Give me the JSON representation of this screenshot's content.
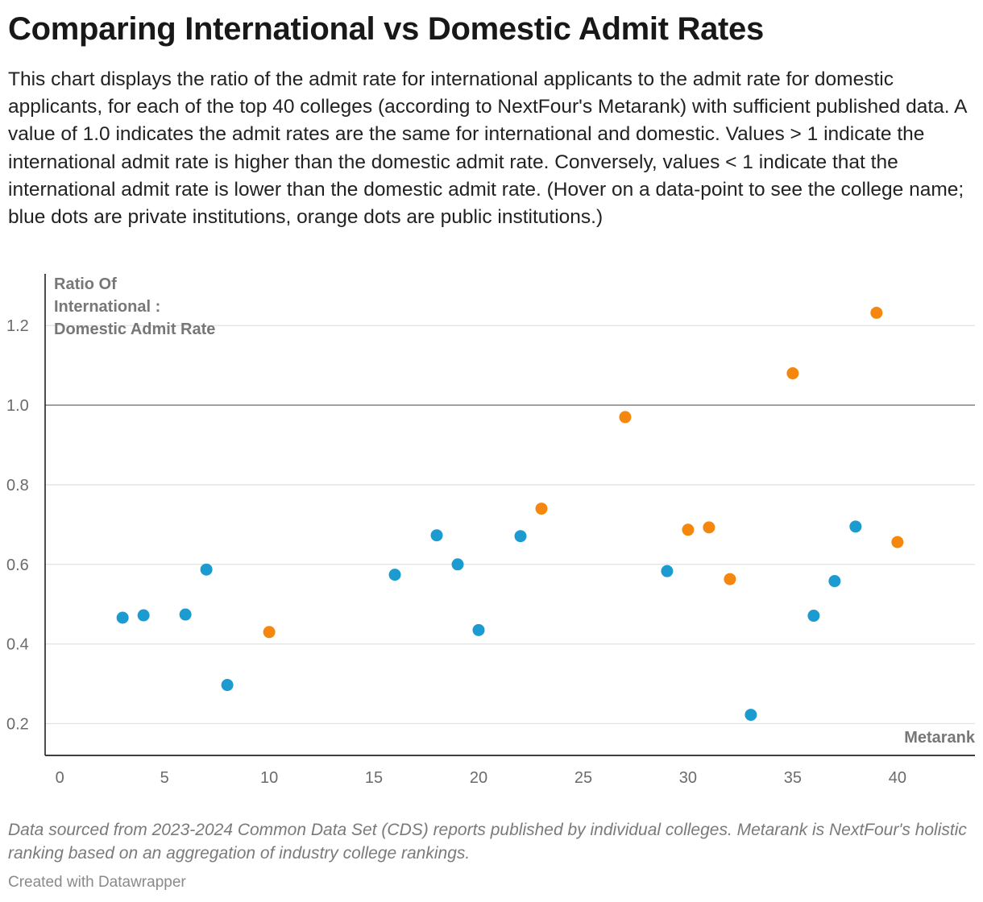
{
  "title": "Comparing International vs Domestic Admit Rates",
  "description": "This chart displays the ratio of the admit rate for international applicants to the admit rate for domestic applicants, for each of the top 40 colleges (according to NextFour's Metarank) with sufficient published data. A value of 1.0 indicates the admit rates are the same for international and domestic. Values > 1 indicate the international admit rate is higher than the domestic admit rate. Conversely, values < 1 indicate that the international admit rate is lower than the domestic admit rate. (Hover on a data-point to see the college name; blue dots are private institutions, orange dots are public institutions.)",
  "notes": "Data sourced from 2023-2024 Common Data Set (CDS) reports published by individual colleges. Metarank is NextFour's holistic ranking based on an aggregation of industry college rankings.",
  "credit": "Created with Datawrapper",
  "colors": {
    "private": "#1c9bd0",
    "public": "#f5870f",
    "gridline": "#e2e2e2",
    "reference": "#8c8c8c",
    "axis": "#222222"
  },
  "chart_data": {
    "type": "scatter",
    "title": "Comparing International vs Domestic Admit Rates",
    "xlabel": "Metarank",
    "ylabel_lines": [
      "Ratio Of",
      "International :",
      "Domestic Admit Rate"
    ],
    "xlim": [
      -0.7,
      43.7
    ],
    "ylim": [
      0.12,
      1.33
    ],
    "x_ticks": [
      0,
      5,
      10,
      15,
      20,
      25,
      30,
      35,
      40
    ],
    "y_ticks": [
      0.2,
      0.4,
      0.6,
      0.8,
      1.0,
      1.2
    ],
    "y_tick_labels": [
      "0.2",
      "0.4",
      "0.6",
      "0.8",
      "1.0",
      "1.2"
    ],
    "reference_line": 1.0,
    "grid": "horizontal",
    "series": [
      {
        "type": "private",
        "color": "#1c9bd0",
        "points": [
          {
            "x": 3,
            "y": 0.466
          },
          {
            "x": 4,
            "y": 0.472
          },
          {
            "x": 6,
            "y": 0.474
          },
          {
            "x": 7,
            "y": 0.587
          },
          {
            "x": 8,
            "y": 0.297
          },
          {
            "x": 16,
            "y": 0.574
          },
          {
            "x": 18,
            "y": 0.673
          },
          {
            "x": 19,
            "y": 0.6
          },
          {
            "x": 20,
            "y": 0.435
          },
          {
            "x": 22,
            "y": 0.671
          },
          {
            "x": 29,
            "y": 0.583
          },
          {
            "x": 33,
            "y": 0.222
          },
          {
            "x": 36,
            "y": 0.471
          },
          {
            "x": 37,
            "y": 0.558
          },
          {
            "x": 38,
            "y": 0.695
          }
        ]
      },
      {
        "type": "public",
        "color": "#f5870f",
        "points": [
          {
            "x": 10,
            "y": 0.43
          },
          {
            "x": 23,
            "y": 0.74
          },
          {
            "x": 27,
            "y": 0.97
          },
          {
            "x": 30,
            "y": 0.687
          },
          {
            "x": 31,
            "y": 0.693
          },
          {
            "x": 32,
            "y": 0.563
          },
          {
            "x": 35,
            "y": 1.08
          },
          {
            "x": 39,
            "y": 1.232
          },
          {
            "x": 40,
            "y": 0.656
          }
        ]
      }
    ]
  }
}
